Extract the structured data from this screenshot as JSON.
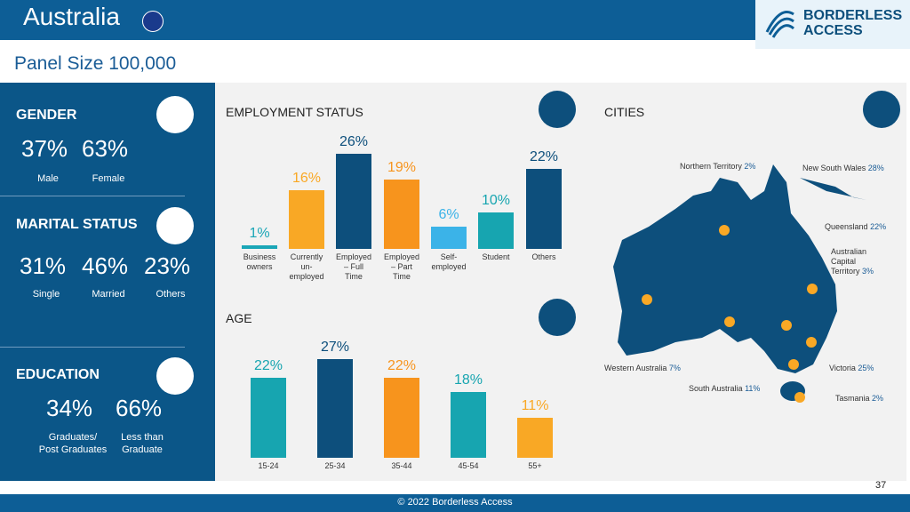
{
  "header": {
    "title": "Australia",
    "logo": "BORDERLESS\nACCESS",
    "subtitle": "Panel Size 100,000"
  },
  "gender": {
    "title": "GENDER",
    "items": [
      {
        "value": "37%",
        "label": "Male"
      },
      {
        "value": "63%",
        "label": "Female"
      }
    ]
  },
  "marital": {
    "title": "MARITAL STATUS",
    "items": [
      {
        "value": "31%",
        "label": "Single"
      },
      {
        "value": "46%",
        "label": "Married"
      },
      {
        "value": "23%",
        "label": "Others"
      }
    ]
  },
  "education": {
    "title": "EDUCATION",
    "items": [
      {
        "value": "34%",
        "label": "Graduates/\nPost Graduates"
      },
      {
        "value": "66%",
        "label": "Less than\nGraduate"
      }
    ]
  },
  "employment": {
    "title": "EMPLOYMENT STATUS",
    "categories": [
      "Business\nowners",
      "Currently\nun-\nemployed",
      "Employed\n– Full\nTime",
      "Employed\n– Part\nTime",
      "Self-\nemployed",
      "Student",
      "Others"
    ],
    "values": [
      1,
      16,
      26,
      19,
      6,
      10,
      22
    ],
    "value_labels": [
      "1%",
      "16%",
      "26%",
      "19%",
      "6%",
      "10%",
      "22%"
    ],
    "colors": [
      "#1aa6b7",
      "#f9a825",
      "#0d4f7c",
      "#f7941d",
      "#3bb3e8",
      "#17a5b0",
      "#0d4f7c"
    ]
  },
  "age": {
    "title": "AGE",
    "categories": [
      "15-24",
      "25-34",
      "35-44",
      "45-54",
      "55+"
    ],
    "values": [
      22,
      27,
      22,
      18,
      11
    ],
    "value_labels": [
      "22%",
      "27%",
      "22%",
      "18%",
      "11%"
    ],
    "colors": [
      "#17a5b0",
      "#0d4f7c",
      "#f7941d",
      "#17a5b0",
      "#f9a825"
    ]
  },
  "cities": {
    "title": "CITIES",
    "items": [
      {
        "name": "Northern Territory",
        "share": "2%"
      },
      {
        "name": "New South Wales",
        "share": "28%"
      },
      {
        "name": "Queensland",
        "share": "22%"
      },
      {
        "name": "Australian\nCapital\nTerritory",
        "share": "3%"
      },
      {
        "name": "Western Australia",
        "share": "7%"
      },
      {
        "name": "South Australia",
        "share": "11%"
      },
      {
        "name": "Victoria",
        "share": "25%"
      },
      {
        "name": "Tasmania",
        "share": "2%"
      }
    ]
  },
  "footer": {
    "copyright": "© 2022 Borderless Access",
    "page": "37"
  }
}
